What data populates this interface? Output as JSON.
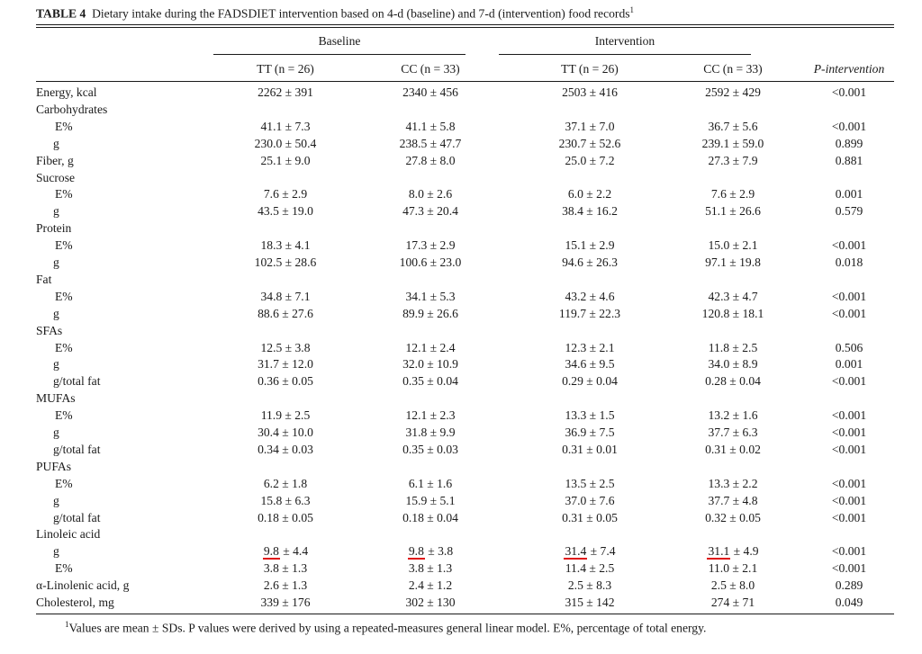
{
  "caption": {
    "label": "TABLE 4",
    "text": "Dietary intake during the FADSDIET intervention based on 4-d (baseline) and 7-d (intervention) food records",
    "sup": "1"
  },
  "groups": {
    "baseline": "Baseline",
    "intervention": "Intervention"
  },
  "columns": [
    "TT (n = 26)",
    "CC (n = 33)",
    "TT (n = 26)",
    "CC (n = 33)",
    "P-intervention"
  ],
  "rows": [
    {
      "label": "Energy, kcal",
      "indent": 0,
      "v": [
        "2262 ± 391",
        "2340 ± 456",
        "2503 ± 416",
        "2592 ± 429",
        "<0.001"
      ]
    },
    {
      "label": "Carbohydrates",
      "indent": 0,
      "v": [
        "",
        "",
        "",
        "",
        ""
      ]
    },
    {
      "label": "E%",
      "indent": 1,
      "v": [
        "41.1 ± 7.3",
        "41.1 ± 5.8",
        "37.1 ± 7.0",
        "36.7 ± 5.6",
        "<0.001"
      ]
    },
    {
      "label": "g",
      "indent": 1,
      "v": [
        "230.0 ± 50.4",
        "238.5 ± 47.7",
        "230.7 ± 52.6",
        "239.1 ± 59.0",
        "0.899"
      ]
    },
    {
      "label": "Fiber, g",
      "indent": 0,
      "v": [
        "25.1 ± 9.0",
        "27.8 ± 8.0",
        "25.0 ± 7.2",
        "27.3 ± 7.9",
        "0.881"
      ]
    },
    {
      "label": "Sucrose",
      "indent": 0,
      "v": [
        "",
        "",
        "",
        "",
        ""
      ]
    },
    {
      "label": "E%",
      "indent": 1,
      "v": [
        "7.6 ± 2.9",
        "8.0 ± 2.6",
        "6.0 ± 2.2",
        "7.6 ± 2.9",
        "0.001"
      ]
    },
    {
      "label": "g",
      "indent": 1,
      "v": [
        "43.5 ± 19.0",
        "47.3 ± 20.4",
        "38.4 ± 16.2",
        "51.1 ± 26.6",
        "0.579"
      ]
    },
    {
      "label": "Protein",
      "indent": 0,
      "v": [
        "",
        "",
        "",
        "",
        ""
      ]
    },
    {
      "label": "E%",
      "indent": 1,
      "v": [
        "18.3 ± 4.1",
        "17.3 ± 2.9",
        "15.1 ± 2.9",
        "15.0 ± 2.1",
        "<0.001"
      ]
    },
    {
      "label": "g",
      "indent": 1,
      "v": [
        "102.5 ± 28.6",
        "100.6 ± 23.0",
        "94.6 ± 26.3",
        "97.1 ± 19.8",
        "0.018"
      ]
    },
    {
      "label": "Fat",
      "indent": 0,
      "v": [
        "",
        "",
        "",
        "",
        ""
      ]
    },
    {
      "label": "E%",
      "indent": 1,
      "v": [
        "34.8 ± 7.1",
        "34.1 ± 5.3",
        "43.2 ± 4.6",
        "42.3 ± 4.7",
        "<0.001"
      ]
    },
    {
      "label": "g",
      "indent": 1,
      "v": [
        "88.6 ± 27.6",
        "89.9 ± 26.6",
        "119.7 ± 22.3",
        "120.8 ± 18.1",
        "<0.001"
      ]
    },
    {
      "label": "SFAs",
      "indent": 0,
      "v": [
        "",
        "",
        "",
        "",
        ""
      ]
    },
    {
      "label": "E%",
      "indent": 1,
      "v": [
        "12.5 ± 3.8",
        "12.1 ± 2.4",
        "12.3 ± 2.1",
        "11.8 ± 2.5",
        "0.506"
      ]
    },
    {
      "label": "g",
      "indent": 1,
      "v": [
        "31.7 ± 12.0",
        "32.0 ± 10.9",
        "34.6 ± 9.5",
        "34.0 ± 8.9",
        "0.001"
      ]
    },
    {
      "label": "g/total fat",
      "indent": 1,
      "v": [
        "0.36 ± 0.05",
        "0.35 ± 0.04",
        "0.29 ± 0.04",
        "0.28 ± 0.04",
        "<0.001"
      ]
    },
    {
      "label": "MUFAs",
      "indent": 0,
      "v": [
        "",
        "",
        "",
        "",
        ""
      ]
    },
    {
      "label": "E%",
      "indent": 1,
      "v": [
        "11.9 ± 2.5",
        "12.1 ± 2.3",
        "13.3 ± 1.5",
        "13.2 ± 1.6",
        "<0.001"
      ]
    },
    {
      "label": "g",
      "indent": 1,
      "v": [
        "30.4 ± 10.0",
        "31.8 ± 9.9",
        "36.9 ± 7.5",
        "37.7 ± 6.3",
        "<0.001"
      ]
    },
    {
      "label": "g/total fat",
      "indent": 1,
      "v": [
        "0.34 ± 0.03",
        "0.35 ± 0.03",
        "0.31 ± 0.01",
        "0.31 ± 0.02",
        "<0.001"
      ]
    },
    {
      "label": "PUFAs",
      "indent": 0,
      "v": [
        "",
        "",
        "",
        "",
        ""
      ]
    },
    {
      "label": "E%",
      "indent": 1,
      "v": [
        "6.2 ± 1.8",
        "6.1 ± 1.6",
        "13.5 ± 2.5",
        "13.3 ± 2.2",
        "<0.001"
      ]
    },
    {
      "label": "g",
      "indent": 1,
      "v": [
        "15.8 ± 6.3",
        "15.9 ± 5.1",
        "37.0 ± 7.6",
        "37.7 ± 4.8",
        "<0.001"
      ]
    },
    {
      "label": "g/total fat",
      "indent": 1,
      "v": [
        "0.18 ± 0.05",
        "0.18 ± 0.04",
        "0.31 ± 0.05",
        "0.32 ± 0.05",
        "<0.001"
      ]
    },
    {
      "label": "Linoleic acid",
      "indent": 0,
      "v": [
        "",
        "",
        "",
        "",
        ""
      ]
    },
    {
      "label": "g",
      "indent": 1,
      "v": [
        "9.8 ± 4.4",
        "9.8 ± 3.8",
        "31.4 ± 7.4",
        "31.1 ± 4.9",
        "<0.001"
      ],
      "underline": true
    },
    {
      "label": "E%",
      "indent": 1,
      "v": [
        "3.8 ± 1.3",
        "3.8 ± 1.3",
        "11.4 ± 2.5",
        "11.0 ± 2.1",
        "<0.001"
      ]
    },
    {
      "label": "α-Linolenic acid, g",
      "indent": 0,
      "v": [
        "2.6 ± 1.3",
        "2.4 ± 1.2",
        "2.5 ± 8.3",
        "2.5 ± 8.0",
        "0.289"
      ]
    },
    {
      "label": "Cholesterol, mg",
      "indent": 0,
      "v": [
        "339 ± 176",
        "302 ± 130",
        "315 ± 142",
        "274 ± 71",
        "0.049"
      ]
    }
  ],
  "footnote": {
    "sup": "1",
    "text": "Values are mean ± SDs. P values were derived by using a repeated-measures general linear model. E%, percentage of total energy."
  },
  "colors": {
    "text": "#1a1a1a",
    "underline": "#e01010"
  }
}
